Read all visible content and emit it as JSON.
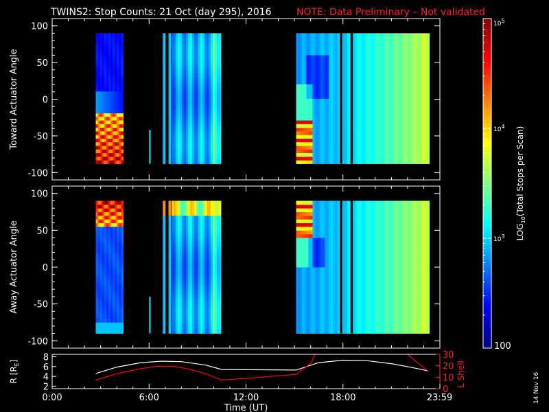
{
  "title": {
    "main": "TWINS2: Stop Counts: 21 Oct (day 295), 2016",
    "note": "NOTE: Data Preliminary – Not validated"
  },
  "colors": {
    "background": "#000000",
    "axes": "#ffffff",
    "note": "#ff0000",
    "r_line": "#ffffff",
    "l_line": "#ff0000"
  },
  "chart_data": [
    {
      "type": "heatmap",
      "name": "toward",
      "ylabel": "Toward Actuator Angle",
      "xlim": [
        0,
        24
      ],
      "ylim": [
        -110,
        110
      ],
      "yticks": [
        -100,
        -50,
        0,
        50,
        100
      ],
      "y_range": [
        -88,
        90
      ],
      "blocks": [
        {
          "t0": 2.7,
          "t1": 4.4,
          "base": 2.4,
          "color_mode": "pass1"
        },
        {
          "t0": 6.85,
          "t1": 7.0,
          "base": 2.9,
          "color_mode": "strip"
        },
        {
          "t0": 7.2,
          "t1": 7.35,
          "base": 2.9,
          "color_mode": "strip"
        },
        {
          "t0": 7.4,
          "t1": 10.45,
          "base": 2.95,
          "color_mode": "mid"
        },
        {
          "t0": 15.1,
          "t1": 23.35,
          "base": 3.0,
          "color_mode": "pass2"
        }
      ],
      "thin_line": {
        "t": 6.05,
        "y0": -88,
        "y1": -42
      },
      "gaps": [
        17.9,
        18.55
      ]
    },
    {
      "type": "heatmap",
      "name": "away",
      "ylabel": "Away Actuator Angle",
      "xlim": [
        0,
        24
      ],
      "ylim": [
        -110,
        110
      ],
      "yticks": [
        -100,
        -50,
        0,
        50,
        100
      ],
      "y_range": [
        -90,
        90
      ],
      "blocks": [
        {
          "t0": 2.7,
          "t1": 4.4,
          "base": 2.6,
          "color_mode": "pass1"
        },
        {
          "t0": 6.85,
          "t1": 7.0,
          "base": 2.9,
          "color_mode": "strip"
        },
        {
          "t0": 7.2,
          "t1": 7.35,
          "base": 2.9,
          "color_mode": "strip"
        },
        {
          "t0": 7.4,
          "t1": 10.45,
          "base": 2.95,
          "color_mode": "mid"
        },
        {
          "t0": 15.1,
          "t1": 23.35,
          "base": 3.0,
          "color_mode": "pass2"
        }
      ],
      "thin_line": {
        "t": 6.05,
        "y0": -90,
        "y1": -40
      },
      "gaps": [
        17.9,
        18.55
      ]
    },
    {
      "type": "line",
      "name": "orbit",
      "ylabel": "R [R",
      "ylabel_sub": "E",
      "ylabel_end": "]",
      "y2label": "L Shell",
      "xlabel": "Time (UT)",
      "xlim": [
        0,
        24
      ],
      "ylim": [
        1.5,
        8.5
      ],
      "y2lim": [
        0,
        30
      ],
      "yticks": [
        2,
        4,
        6,
        8
      ],
      "y2ticks": [
        0,
        10,
        20,
        30
      ],
      "xticks": [
        0,
        6,
        12,
        18,
        23.983
      ],
      "xtick_labels": [
        "0:00",
        "6:00",
        "12:00",
        "18:00",
        "23:59"
      ],
      "series": [
        {
          "name": "R",
          "axis": "left",
          "x": [
            2.7,
            4.0,
            5.5,
            6.8,
            8.0,
            9.5,
            10.5,
            15.1,
            16.5,
            18.0,
            19.5,
            21.0,
            22.3,
            23.3
          ],
          "y": [
            4.6,
            5.9,
            6.8,
            7.1,
            7.0,
            6.3,
            5.4,
            5.3,
            6.8,
            7.3,
            7.2,
            6.6,
            5.8,
            5.1
          ]
        },
        {
          "name": "L",
          "axis": "right",
          "x": [
            2.7,
            4.0,
            5.5,
            6.5,
            7.5,
            8.5,
            9.5,
            10.5,
            12.5,
            15.1,
            16.0,
            16.2,
            16.25
          ],
          "y": [
            7.5,
            13.0,
            17.5,
            19.5,
            19.5,
            17.0,
            13.0,
            7.5,
            9.5,
            12.5,
            22.0,
            28.0,
            30.0
          ],
          "extra_x": [
            22.0,
            22.6,
            23.3
          ],
          "extra_y": [
            30.0,
            23.0,
            15.0
          ]
        }
      ]
    }
  ],
  "colorbar": {
    "label": "LOG10(Total Stops per Scan)",
    "label_prefix": "LOG",
    "label_sub": "10",
    "label_suffix": "(Total Stops per Scan)",
    "min_label": "100",
    "ticks": [
      {
        "value": 5,
        "base": "10",
        "exp": "5"
      },
      {
        "value": 4,
        "base": "10",
        "exp": "4"
      },
      {
        "value": 3,
        "base": "10",
        "exp": "3"
      }
    ],
    "range": [
      2,
      5
    ]
  },
  "footer_date": "14 Nov 16"
}
